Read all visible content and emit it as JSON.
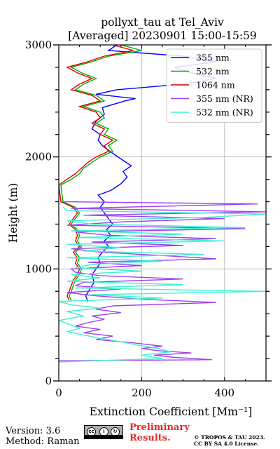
{
  "chart_data": {
    "type": "line",
    "orientation": "vertical-profile",
    "title": [
      "pollyxt_tau at Tel_Aviv",
      "[Averaged] 20230901 15:00-15:59"
    ],
    "xlabel": "Extinction Coefficient [Mm⁻¹]",
    "ylabel": "Height (m)",
    "xlim": [
      0,
      500
    ],
    "ylim": [
      0,
      3000
    ],
    "xticks": [
      0,
      200,
      400
    ],
    "yticks": [
      0,
      1000,
      2000,
      3000
    ],
    "grid": true,
    "legend_position": "top-right",
    "series": [
      {
        "name": "355 nm",
        "color": "#0000ff",
        "points": [
          [
            70,
            710
          ],
          [
            65,
            760
          ],
          [
            75,
            820
          ],
          [
            85,
            880
          ],
          [
            80,
            950
          ],
          [
            90,
            1000
          ],
          [
            100,
            1050
          ],
          [
            95,
            1100
          ],
          [
            105,
            1150
          ],
          [
            120,
            1200
          ],
          [
            110,
            1250
          ],
          [
            125,
            1300
          ],
          [
            115,
            1350
          ],
          [
            130,
            1400
          ],
          [
            120,
            1450
          ],
          [
            110,
            1500
          ],
          [
            100,
            1550
          ],
          [
            110,
            1600
          ],
          [
            95,
            1660
          ],
          [
            125,
            1700
          ],
          [
            150,
            1760
          ],
          [
            165,
            1820
          ],
          [
            155,
            1870
          ],
          [
            175,
            1920
          ],
          [
            155,
            1970
          ],
          [
            135,
            2020
          ],
          [
            120,
            2060
          ],
          [
            105,
            2100
          ],
          [
            95,
            2150
          ],
          [
            100,
            2200
          ],
          [
            80,
            2250
          ],
          [
            90,
            2320
          ],
          [
            110,
            2380
          ],
          [
            105,
            2440
          ],
          [
            160,
            2500
          ],
          [
            185,
            2520
          ],
          [
            90,
            2560
          ],
          [
            140,
            2600
          ],
          [
            300,
            2650
          ],
          [
            380,
            2700
          ],
          [
            320,
            2750
          ],
          [
            280,
            2800
          ],
          [
            380,
            2850
          ],
          [
            300,
            2900
          ],
          [
            120,
            2950
          ],
          [
            140,
            3000
          ]
        ]
      },
      {
        "name": "532 nm",
        "color": "#00b000",
        "points": [
          [
            30,
            1400
          ],
          [
            45,
            1350
          ],
          [
            50,
            1300
          ],
          [
            45,
            1250
          ],
          [
            55,
            1200
          ],
          [
            40,
            1150
          ],
          [
            50,
            1100
          ],
          [
            45,
            1050
          ],
          [
            55,
            1000
          ],
          [
            50,
            950
          ],
          [
            40,
            900
          ],
          [
            35,
            850
          ],
          [
            30,
            800
          ],
          [
            25,
            760
          ],
          [
            30,
            720
          ],
          [
            50,
            1500
          ],
          [
            40,
            1550
          ],
          [
            10,
            1600
          ],
          [
            5,
            1750
          ],
          [
            30,
            1800
          ],
          [
            50,
            1850
          ],
          [
            60,
            1900
          ],
          [
            80,
            1950
          ],
          [
            100,
            2000
          ],
          [
            130,
            2050
          ],
          [
            120,
            2100
          ],
          [
            140,
            2150
          ],
          [
            110,
            2200
          ],
          [
            120,
            2250
          ],
          [
            90,
            2300
          ],
          [
            110,
            2350
          ],
          [
            100,
            2400
          ],
          [
            60,
            2450
          ],
          [
            110,
            2500
          ],
          [
            90,
            2550
          ],
          [
            40,
            2600
          ],
          [
            60,
            2650
          ],
          [
            90,
            2700
          ],
          [
            55,
            2750
          ],
          [
            30,
            2800
          ],
          [
            80,
            2850
          ],
          [
            120,
            2900
          ],
          [
            200,
            2950
          ],
          [
            150,
            3000
          ]
        ]
      },
      {
        "name": "1064 nm",
        "color": "#e00000",
        "points": [
          [
            25,
            1400
          ],
          [
            40,
            1350
          ],
          [
            45,
            1300
          ],
          [
            40,
            1250
          ],
          [
            50,
            1200
          ],
          [
            35,
            1150
          ],
          [
            45,
            1100
          ],
          [
            40,
            1050
          ],
          [
            50,
            1000
          ],
          [
            45,
            950
          ],
          [
            35,
            900
          ],
          [
            30,
            850
          ],
          [
            25,
            800
          ],
          [
            20,
            760
          ],
          [
            25,
            720
          ],
          [
            45,
            1500
          ],
          [
            35,
            1550
          ],
          [
            5,
            1600
          ],
          [
            0,
            1750
          ],
          [
            20,
            1800
          ],
          [
            40,
            1850
          ],
          [
            55,
            1900
          ],
          [
            70,
            1950
          ],
          [
            90,
            2000
          ],
          [
            120,
            2050
          ],
          [
            110,
            2100
          ],
          [
            130,
            2150
          ],
          [
            100,
            2200
          ],
          [
            110,
            2250
          ],
          [
            80,
            2300
          ],
          [
            100,
            2350
          ],
          [
            90,
            2400
          ],
          [
            50,
            2450
          ],
          [
            100,
            2500
          ],
          [
            80,
            2550
          ],
          [
            30,
            2600
          ],
          [
            50,
            2650
          ],
          [
            80,
            2700
          ],
          [
            45,
            2750
          ],
          [
            20,
            2800
          ],
          [
            70,
            2850
          ],
          [
            110,
            2900
          ],
          [
            180,
            2950
          ],
          [
            130,
            3000
          ]
        ]
      },
      {
        "name": "355 nm (NR)",
        "color": "#a040f0",
        "points": [
          [
            0,
            180
          ],
          [
            370,
            190
          ],
          [
            280,
            210
          ],
          [
            230,
            230
          ],
          [
            320,
            250
          ],
          [
            240,
            270
          ],
          [
            200,
            290
          ],
          [
            250,
            310
          ],
          [
            180,
            340
          ],
          [
            90,
            370
          ],
          [
            130,
            400
          ],
          [
            60,
            430
          ],
          [
            100,
            460
          ],
          [
            40,
            490
          ],
          [
            70,
            520
          ],
          [
            110,
            550
          ],
          [
            80,
            580
          ],
          [
            150,
            610
          ],
          [
            90,
            640
          ],
          [
            130,
            670
          ],
          [
            380,
            700
          ],
          [
            200,
            730
          ],
          [
            90,
            760
          ],
          [
            20,
            790
          ],
          [
            150,
            820
          ],
          [
            40,
            850
          ],
          [
            60,
            880
          ],
          [
            300,
            910
          ],
          [
            100,
            940
          ],
          [
            40,
            970
          ],
          [
            30,
            1000
          ],
          [
            200,
            1030
          ],
          [
            70,
            1060
          ],
          [
            380,
            1090
          ],
          [
            250,
            1120
          ],
          [
            100,
            1150
          ],
          [
            30,
            1180
          ],
          [
            300,
            1210
          ],
          [
            80,
            1240
          ],
          [
            380,
            1270
          ],
          [
            120,
            1300
          ],
          [
            40,
            1330
          ],
          [
            450,
            1360
          ],
          [
            20,
            1390
          ],
          [
            150,
            1420
          ],
          [
            400,
            1450
          ],
          [
            60,
            1480
          ],
          [
            500,
            1510
          ],
          [
            30,
            1540
          ],
          [
            480,
            1580
          ],
          [
            10,
            1600
          ]
        ]
      },
      {
        "name": "532 nm (NR)",
        "color": "#40f0d0",
        "points": [
          [
            0,
            170
          ],
          [
            250,
            200
          ],
          [
            200,
            230
          ],
          [
            270,
            260
          ],
          [
            240,
            290
          ],
          [
            190,
            320
          ],
          [
            150,
            350
          ],
          [
            100,
            380
          ],
          [
            60,
            410
          ],
          [
            20,
            440
          ],
          [
            50,
            470
          ],
          [
            30,
            500
          ],
          [
            0,
            540
          ],
          [
            60,
            580
          ],
          [
            20,
            620
          ],
          [
            100,
            650
          ],
          [
            30,
            680
          ],
          [
            0,
            710
          ],
          [
            250,
            740
          ],
          [
            80,
            770
          ],
          [
            500,
            800
          ],
          [
            40,
            830
          ],
          [
            300,
            860
          ],
          [
            20,
            890
          ],
          [
            100,
            920
          ],
          [
            30,
            950
          ],
          [
            200,
            980
          ],
          [
            40,
            1010
          ],
          [
            80,
            1040
          ],
          [
            250,
            1070
          ],
          [
            20,
            1100
          ],
          [
            350,
            1130
          ],
          [
            60,
            1160
          ],
          [
            150,
            1190
          ],
          [
            20,
            1220
          ],
          [
            400,
            1250
          ],
          [
            50,
            1280
          ],
          [
            300,
            1310
          ],
          [
            30,
            1340
          ],
          [
            450,
            1370
          ],
          [
            80,
            1400
          ],
          [
            20,
            1430
          ],
          [
            350,
            1460
          ],
          [
            500,
            1490
          ],
          [
            20,
            1520
          ],
          [
            10,
            1550
          ]
        ]
      }
    ]
  },
  "footer": {
    "version": "Version: 3.6",
    "method": "Method: Raman",
    "license_badge": "cc-by-sa-icon",
    "preliminary_line1": "Preliminary",
    "preliminary_line2": "Results.",
    "copyright_line1": "© TROPOS & TAU 2023.",
    "copyright_line2": "CC BY SA 4.0 License."
  },
  "colors": {
    "preliminary": "#e8282a",
    "grid": "#b0b0b0"
  }
}
